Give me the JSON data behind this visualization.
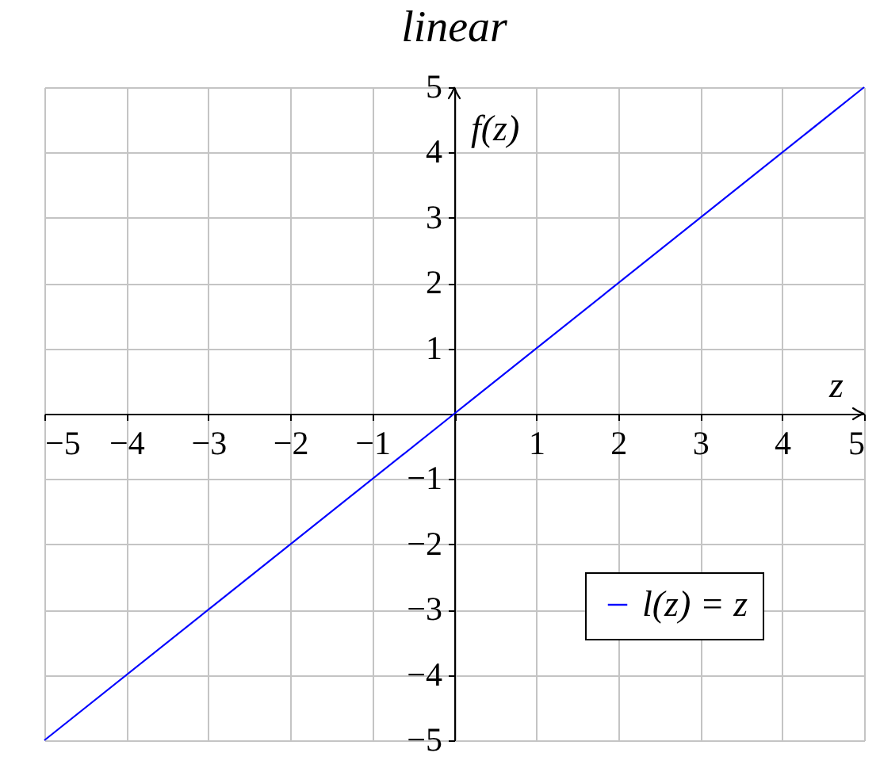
{
  "chart_data": {
    "type": "line",
    "title": "linear",
    "xlabel": "z",
    "ylabel": "f(z)",
    "x": [
      -5,
      0,
      5
    ],
    "series": [
      {
        "name": "l(z) = z",
        "color": "#0000ff",
        "values": [
          -5,
          0,
          5
        ]
      }
    ],
    "xlim": [
      -5,
      5
    ],
    "ylim": [
      -5,
      5
    ],
    "xticks": [
      -5,
      -4,
      -3,
      -2,
      -1,
      {
        "value": 0,
        "label": null
      },
      1,
      2,
      3,
      4,
      5
    ],
    "yticks": [
      -5,
      -4,
      -3,
      -2,
      -1,
      {
        "value": 0,
        "label": null
      },
      1,
      2,
      3,
      4,
      5
    ],
    "grid": true,
    "legend": "bottom right",
    "line_style": "solid"
  }
}
